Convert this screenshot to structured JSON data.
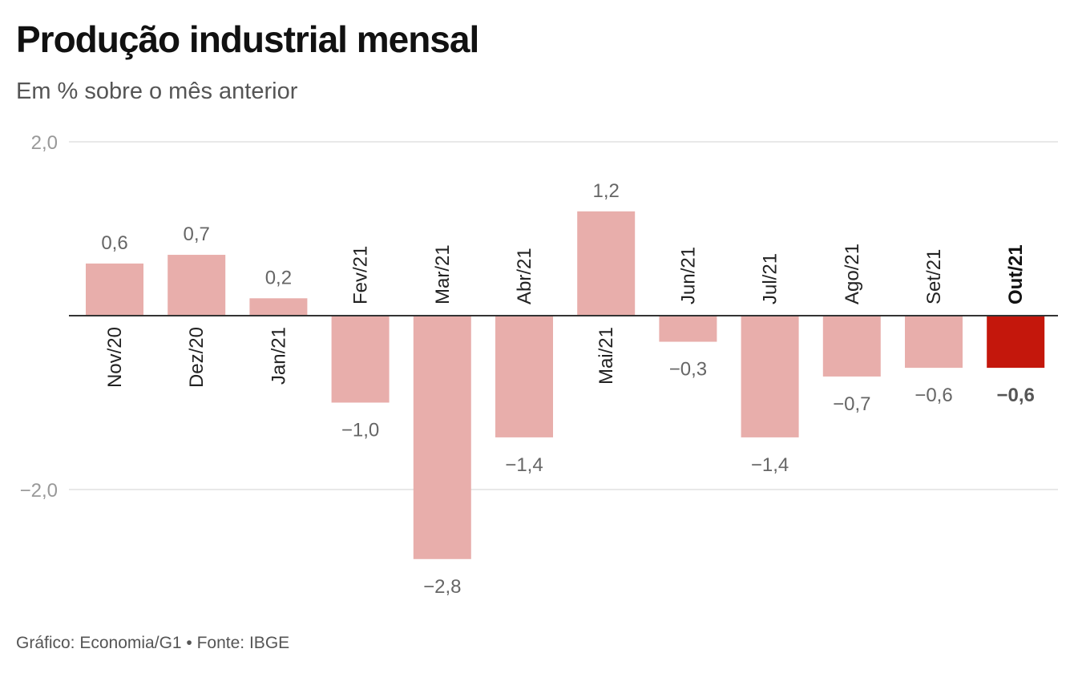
{
  "chart_data": {
    "type": "bar",
    "title": "Produção industrial mensal",
    "subtitle": "Em % sobre o mês anterior",
    "source": "Gráfico: Economia/G1 • Fonte: IBGE",
    "categories": [
      "Nov/20",
      "Dez/20",
      "Jan/21",
      "Fev/21",
      "Mar/21",
      "Abr/21",
      "Mai/21",
      "Jun/21",
      "Jul/21",
      "Ago/21",
      "Set/21",
      "Out/21"
    ],
    "values": [
      0.6,
      0.7,
      0.2,
      -1.0,
      -2.8,
      -1.4,
      1.2,
      -0.3,
      -1.4,
      -0.7,
      -0.6,
      -0.6
    ],
    "value_labels": [
      "0,6",
      "0,7",
      "0,2",
      "−1,0",
      "−2,8",
      "−1,4",
      "1,2",
      "−0,3",
      "−1,4",
      "−0,7",
      "−0,6",
      "−0,6"
    ],
    "highlight": "Out/21",
    "yticks": [
      2.0,
      -2.0
    ],
    "ytick_labels": [
      "2,0",
      "−2,0"
    ],
    "ylim": [
      -3.0,
      2.0
    ],
    "grid": true,
    "colors": {
      "bar": "#e8aeab",
      "highlight_bar": "#c4170c",
      "grid": "#e0e0e0",
      "baseline": "#333333"
    }
  }
}
